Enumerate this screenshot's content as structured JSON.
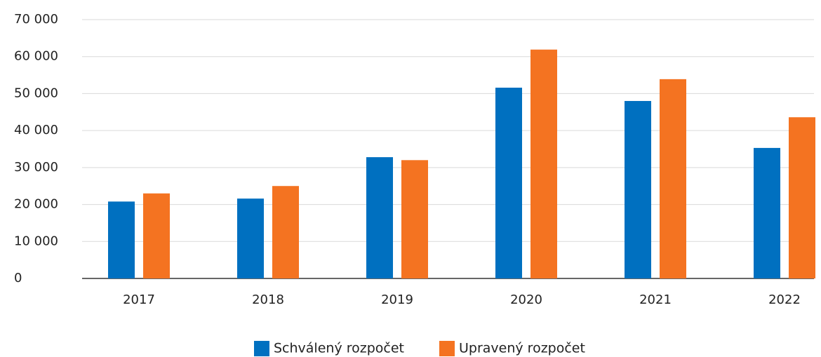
{
  "chart_data": {
    "type": "bar",
    "categories": [
      "2017",
      "2018",
      "2019",
      "2020",
      "2021",
      "2022"
    ],
    "series": [
      {
        "name": "Schválený rozpočet",
        "color": "#0070c0",
        "values": [
          20800,
          21600,
          32800,
          51600,
          48000,
          35300
        ]
      },
      {
        "name": "Upravený rozpočet",
        "color": "#f47321",
        "values": [
          23000,
          25000,
          32000,
          61900,
          53900,
          43600
        ]
      }
    ],
    "ylim": [
      0,
      70000
    ],
    "yticks": [
      0,
      {
        "value": 10000,
        "label": "10 000"
      },
      {
        "value": 20000,
        "label": "20 000"
      },
      {
        "value": 30000,
        "label": "30 000"
      },
      {
        "value": 40000,
        "label": "40 000"
      },
      {
        "value": 50000,
        "label": "50 000"
      },
      {
        "value": 60000,
        "label": "60 000"
      },
      {
        "value": 70000,
        "label": "70 000"
      }
    ],
    "grid": true,
    "legend": "bottom"
  }
}
